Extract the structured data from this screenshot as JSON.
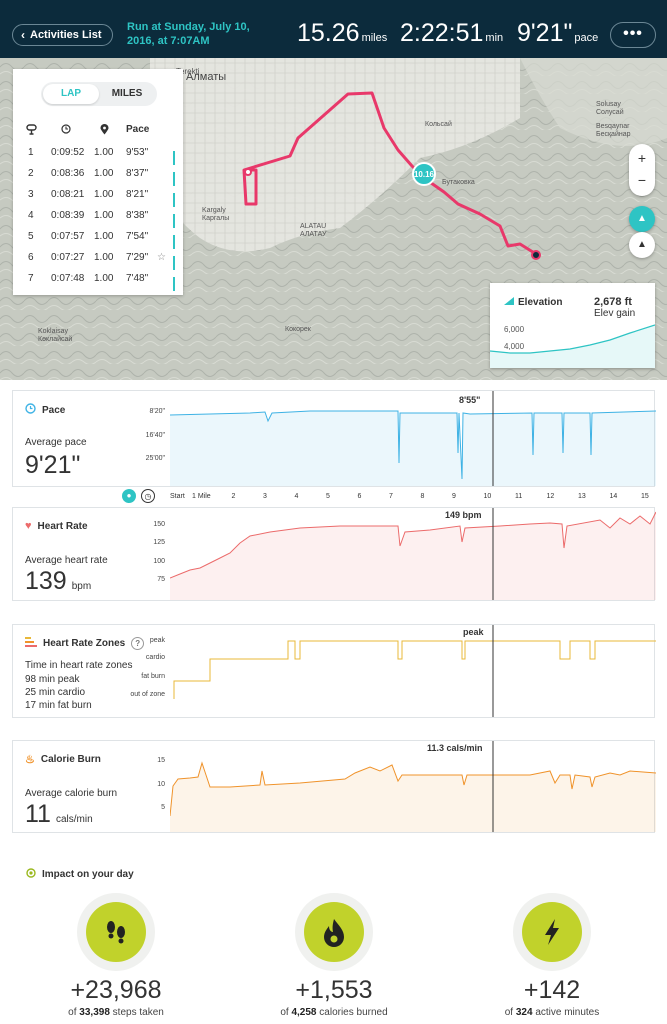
{
  "header": {
    "back_label": "Activities List",
    "run_title": "Run at Sunday, July 10, 2016, at 7:07AM",
    "distance_value": "15.26",
    "distance_unit": "miles",
    "duration_value": "2:22:51",
    "duration_unit": "min",
    "pace_value": "9'21\"",
    "pace_unit": "pace",
    "more_label": "•••"
  },
  "map": {
    "mile_marker": "10.16",
    "place_labels": [
      "Алматы",
      "Kargaly",
      "Каргалы",
      "Кольсай",
      "Бутаковка",
      "Solusay",
      "Солусай",
      "Besqaynar",
      "Бесқайнар",
      "Koklaisay",
      "Көклайсай",
      "Кокорек",
      "Terekti",
      "ALATAU",
      "АЛАТАУ"
    ],
    "zoom_in": "+",
    "zoom_out": "−"
  },
  "laps": {
    "tabs": {
      "lap": "LAP",
      "miles": "MILES"
    },
    "columns": {
      "pace": "Pace"
    },
    "rows": [
      {
        "num": "1",
        "time": "0:09:52",
        "dist": "1.00",
        "pace": "9'53\""
      },
      {
        "num": "2",
        "time": "0:08:36",
        "dist": "1.00",
        "pace": "8'37\""
      },
      {
        "num": "3",
        "time": "0:08:21",
        "dist": "1.00",
        "pace": "8'21\""
      },
      {
        "num": "4",
        "time": "0:08:39",
        "dist": "1.00",
        "pace": "8'38\""
      },
      {
        "num": "5",
        "time": "0:07:57",
        "dist": "1.00",
        "pace": "7'54\""
      },
      {
        "num": "6",
        "time": "0:07:27",
        "dist": "1.00",
        "pace": "7'29\""
      },
      {
        "num": "7",
        "time": "0:07:48",
        "dist": "1.00",
        "pace": "7'48\""
      }
    ]
  },
  "elevation": {
    "title": "Elevation",
    "gain_value": "2,678 ft",
    "gain_label": "Elev gain",
    "y_ticks": [
      "6,000",
      "4,000"
    ]
  },
  "pace_panel": {
    "title": "Pace",
    "avg_label": "Average pace",
    "avg_value": "9'21\"",
    "cursor_value": "8'55\"",
    "y_ticks": [
      "8'20\"",
      "16'40\"",
      "25'00\""
    ]
  },
  "x_axis": {
    "ticks": [
      "Start",
      "1 Mile",
      "2",
      "3",
      "4",
      "5",
      "6",
      "7",
      "8",
      "9",
      "10",
      "11",
      "12",
      "13",
      "14",
      "15"
    ]
  },
  "hr_panel": {
    "title": "Heart Rate",
    "avg_label": "Average heart rate",
    "avg_value": "139",
    "avg_unit": "bpm",
    "cursor_value": "149  bpm",
    "y_ticks": [
      "150",
      "125",
      "100",
      "75"
    ]
  },
  "zones_panel": {
    "title": "Heart Rate Zones",
    "help": "?",
    "sub_label": "Time in heart rate zones",
    "lines": [
      "98 min peak",
      "25 min cardio",
      "17 min fat burn"
    ],
    "cursor_value": "peak",
    "y_ticks": [
      "peak",
      "cardio",
      "fat burn",
      "out of zone"
    ]
  },
  "cal_panel": {
    "title": "Calorie Burn",
    "avg_label": "Average calorie burn",
    "avg_value": "11",
    "avg_unit": "cals/min",
    "cursor_value": "11.3  cals/min",
    "y_ticks": [
      "15",
      "10",
      "5"
    ]
  },
  "impact": {
    "title": "Impact on your day",
    "items": [
      {
        "plus": "+23,968",
        "of": "of",
        "total": "33,398",
        "label": "steps taken",
        "icon": "footprints-icon"
      },
      {
        "plus": "+1,553",
        "of": "of",
        "total": "4,258",
        "label": "calories burned",
        "icon": "flame-icon"
      },
      {
        "plus": "+142",
        "of": "of",
        "total": "324",
        "label": "active minutes",
        "icon": "bolt-icon"
      }
    ]
  },
  "colors": {
    "header_bg": "#0c2b3c",
    "accent": "#2ec4c4",
    "route": "#e8386a",
    "pace": "#3fb3e5",
    "heart_rate": "#ec6b6b",
    "zones": "#e8b83a",
    "calories": "#f0932b",
    "impact_dot": "#c1d22b"
  }
}
